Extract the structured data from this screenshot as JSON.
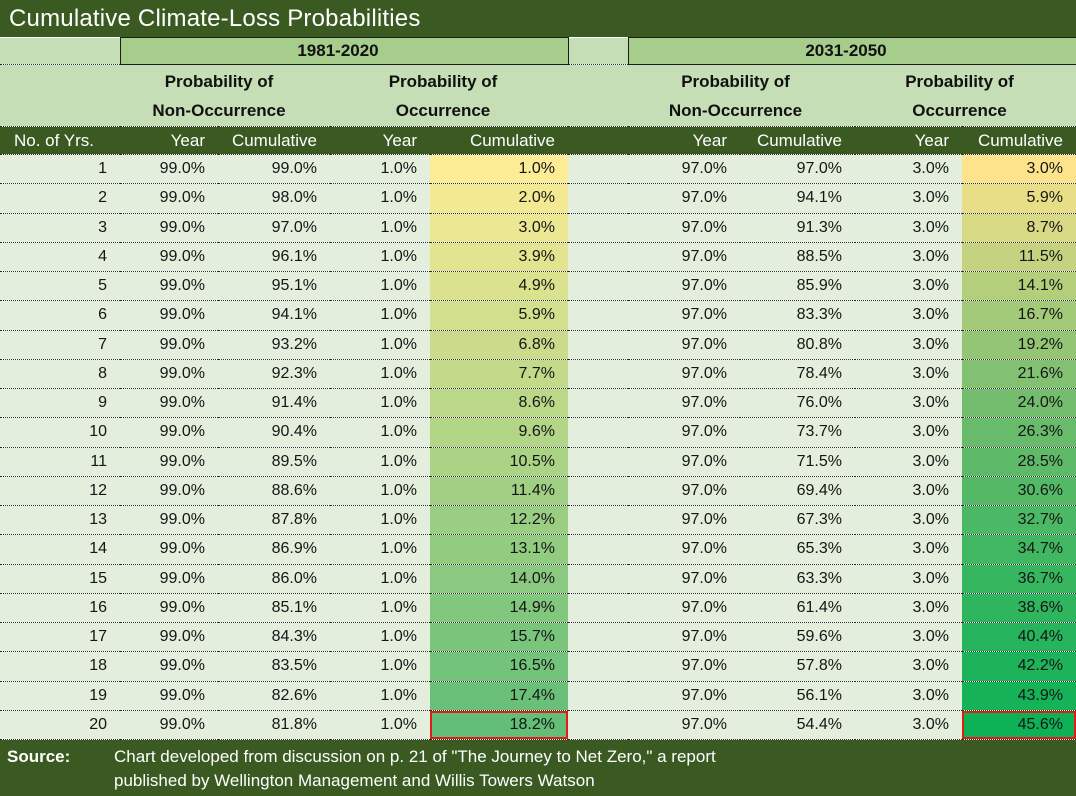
{
  "title": "Cumulative Climate-Loss Probabilities",
  "subheaders": {
    "probability_of": "Probability of",
    "non_occurrence": "Non-Occurrence",
    "occurrence": "Occurrence"
  },
  "columns": {
    "no_of_yrs": "No. of Yrs.",
    "year": "Year",
    "cumulative": "Cumulative"
  },
  "footer": {
    "label": "Source:",
    "line1": "Chart developed from discussion on p. 21 of  \"The Journey to Net Zero,\" a report",
    "line2": "published by Wellington Management and Willis Towers Watson"
  },
  "colors": {
    "dark_green": "#3a5a22",
    "band_green": "#a6cd8c",
    "subheader_green": "#c6deb5",
    "body_green": "#e3eedd",
    "highlight_border": "#e11e14",
    "scale_1981_2020": {
      "from": "#fcec95",
      "mid": "#b2d587",
      "to": "#63be78"
    },
    "scale_2031_2050": {
      "from": "#fce38c",
      "mid": "#72bc6e",
      "to": "#0db156"
    }
  },
  "chart_data": {
    "type": "table",
    "title": "Cumulative Climate-Loss Probabilities",
    "row_header": "No. of Yrs.",
    "years": [
      1,
      2,
      3,
      4,
      5,
      6,
      7,
      8,
      9,
      10,
      11,
      12,
      13,
      14,
      15,
      16,
      17,
      18,
      19,
      20
    ],
    "periods": [
      {
        "label": "1981-2020",
        "prob_non_occurrence_year": 99.0,
        "prob_non_occurrence_cumulative": [
          99.0,
          98.0,
          97.0,
          96.1,
          95.1,
          94.1,
          93.2,
          92.3,
          91.4,
          90.4,
          89.5,
          88.6,
          87.8,
          86.9,
          86.0,
          85.1,
          84.3,
          83.5,
          82.6,
          81.8
        ],
        "prob_occurrence_year": 1.0,
        "prob_occurrence_cumulative": [
          1.0,
          2.0,
          3.0,
          3.9,
          4.9,
          5.9,
          6.8,
          7.7,
          8.6,
          9.6,
          10.5,
          11.4,
          12.2,
          13.1,
          14.0,
          14.9,
          15.7,
          16.5,
          17.4,
          18.2
        ]
      },
      {
        "label": "2031-2050",
        "prob_non_occurrence_year": 97.0,
        "prob_non_occurrence_cumulative": [
          97.0,
          94.1,
          91.3,
          88.5,
          85.9,
          83.3,
          80.8,
          78.4,
          76.0,
          73.7,
          71.5,
          69.4,
          67.3,
          65.3,
          63.3,
          61.4,
          59.6,
          57.8,
          56.1,
          54.4
        ],
        "prob_occurrence_year": 3.0,
        "prob_occurrence_cumulative": [
          3.0,
          5.9,
          8.7,
          11.5,
          14.1,
          16.7,
          19.2,
          21.6,
          24.0,
          26.3,
          28.5,
          30.6,
          32.7,
          34.7,
          36.7,
          38.6,
          40.4,
          42.2,
          43.9,
          45.6
        ]
      }
    ],
    "highlighted_values": [
      "18.2%",
      "45.6%"
    ],
    "layout_hints": {
      "gradient_columns": "cumulative occurrence columns shaded yellow-to-green",
      "row_separators": "dotted"
    }
  }
}
